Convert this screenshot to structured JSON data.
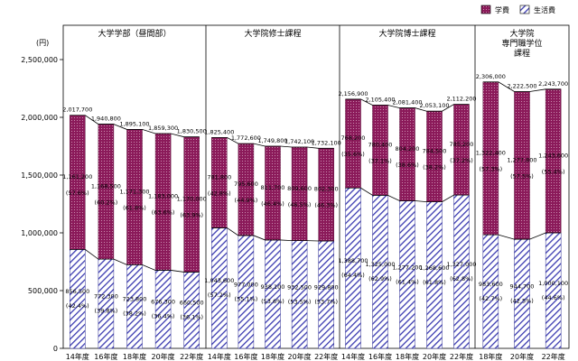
{
  "chart_data": {
    "type": "bar",
    "stacked": true,
    "unit_label": "(円)",
    "ylim": [
      0,
      2500000
    ],
    "yticks": [
      "0",
      "500,000",
      "1,000,000",
      "1,500,000",
      "2,000,000",
      "2,500,000"
    ],
    "legend": [
      "学費",
      "生活費"
    ],
    "colors": {
      "tuition": "#8b1a5a",
      "living": "#3a3ab0"
    },
    "panels": [
      {
        "title": [
          "大学学部（昼間部）"
        ],
        "years": [
          "14年度",
          "16年度",
          "18年度",
          "20年度",
          "22年度"
        ],
        "totals": [
          2017700,
          1940800,
          1895100,
          1859300,
          1830500
        ],
        "tuition": [
          1161200,
          1168500,
          1171300,
          1183000,
          1170000
        ],
        "living": [
          856500,
          772300,
          723800,
          676300,
          660500
        ],
        "total_labels": [
          "2,017,700",
          "1,940,800",
          "1,895,100",
          "1,859,300",
          "1,830,500"
        ],
        "tuition_labels": [
          "1,161,200",
          "1,168,500",
          "1,171,300",
          "1,183,000",
          "1,170,000"
        ],
        "tuition_pct": [
          "(57.6%)",
          "(60.2%)",
          "(61.8%)",
          "(63.6%)",
          "(63.9%)"
        ],
        "living_labels": [
          "856,500",
          "772,300",
          "723,800",
          "676,300",
          "660,500"
        ],
        "living_pct": [
          "(42.4%)",
          "(39.8%)",
          "(38.2%)",
          "(36.4%)",
          "(36.1%)"
        ]
      },
      {
        "title": [
          "大学院修士課程"
        ],
        "years": [
          "14年度",
          "16年度",
          "18年度",
          "20年度",
          "22年度"
        ],
        "totals": [
          1825400,
          1772600,
          1749800,
          1742100,
          1732100
        ],
        "tuition": [
          781800,
          795600,
          811700,
          809600,
          802300
        ],
        "living": [
          1043600,
          977000,
          938100,
          932500,
          929800
        ],
        "total_labels": [
          "1,825,400",
          "1,772,600",
          "1,749,800",
          "1,742,100",
          "1,732,100"
        ],
        "tuition_labels": [
          "781,800",
          "795,600",
          "811,700",
          "809,600",
          "802,300"
        ],
        "tuition_pct": [
          "(42.8%)",
          "(44.9%)",
          "(46.4%)",
          "(46.5%)",
          "(46.3%)"
        ],
        "living_labels": [
          "1,043,600",
          "977,000",
          "938,100",
          "932,500",
          "929,800"
        ],
        "living_pct": [
          "(57.2%)",
          "(55.1%)",
          "(53.6%)",
          "(53.5%)",
          "(53.7%)"
        ]
      },
      {
        "title": [
          "大学院博士課程"
        ],
        "years": [
          "14年度",
          "16年度",
          "18年度",
          "20年度",
          "22年度"
        ],
        "totals": [
          2156900,
          2105400,
          2081400,
          2053100,
          2112200
        ],
        "tuition": [
          768200,
          780400,
          804200,
          784500,
          785200
        ],
        "living": [
          1388700,
          1325000,
          1277200,
          1268600,
          1327000
        ],
        "total_labels": [
          "2,156,900",
          "2,105,400",
          "2,081,400",
          "2,053,100",
          "2,112,200"
        ],
        "tuition_labels": [
          "768,200",
          "780,400",
          "804,200",
          "784,500",
          "785,200"
        ],
        "tuition_pct": [
          "(35.6%)",
          "(37.1%)",
          "(38.6%)",
          "(38.2%)",
          "(37.2%)"
        ],
        "living_labels": [
          "1,388,700",
          "1,325,000",
          "1,277,200",
          "1,268,600",
          "1,327,000"
        ],
        "living_pct": [
          "(64.4%)",
          "(62.9%)",
          "(61.4%)",
          "(61.8%)",
          "(62.8%)"
        ]
      },
      {
        "title": [
          "大学院",
          "専門職学位",
          "課程"
        ],
        "years": [
          "18年度",
          "20年度",
          "22年度"
        ],
        "totals": [
          2306000,
          2222500,
          2243700
        ],
        "tuition": [
          1322400,
          1277800,
          1243600
        ],
        "living": [
          983600,
          944700,
          1000100
        ],
        "total_labels": [
          "2,306,000",
          "2,222,500",
          "2,243,700"
        ],
        "tuition_labels": [
          "1,322,400",
          "1,277,800",
          "1,243,600"
        ],
        "tuition_pct": [
          "(57.3%)",
          "(57.5%)",
          "(55.4%)"
        ],
        "living_labels": [
          "983,600",
          "944,700",
          "1,000,100"
        ],
        "living_pct": [
          "(42.7%)",
          "(42.5%)",
          "(44.6%)"
        ]
      }
    ]
  }
}
